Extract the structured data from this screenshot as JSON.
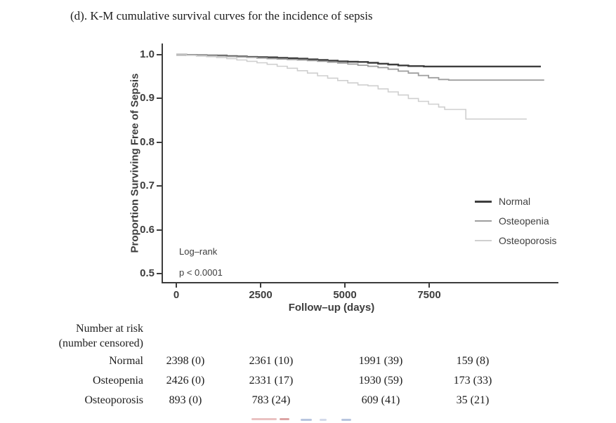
{
  "figure": {
    "title": "(d). K-M cumulative survival curves for the incidence of sepsis"
  },
  "chart_data": {
    "type": "line",
    "subtype": "kaplan-meier-step",
    "title": "(d). K-M cumulative survival curves for the incidence of sepsis",
    "xlabel": "Follow–up (days)",
    "ylabel": "Proportion Surviving Free of Sepsis",
    "xlim": [
      0,
      11350
    ],
    "ylim": [
      0.5,
      1.0
    ],
    "grid": false,
    "legend_position": "right-middle",
    "x_ticks": [
      0,
      2500,
      5000,
      7500
    ],
    "x_tick_labels": [
      "0",
      "2500",
      "5000",
      "7500"
    ],
    "y_ticks": [
      1.0,
      0.9,
      0.8,
      0.7,
      0.6,
      0.5
    ],
    "y_tick_labels": [
      "1.0",
      "0.9",
      "0.8",
      "0.7",
      "0.6",
      "0.5"
    ],
    "annotation": {
      "line1": "Log–rank",
      "line2": "p < 0.0001"
    },
    "series": [
      {
        "name": "Normal",
        "color": "#3d3d3d",
        "points": [
          [
            0,
            1.0
          ],
          [
            300,
            0.9995
          ],
          [
            600,
            0.999
          ],
          [
            900,
            0.9985
          ],
          [
            1200,
            0.998
          ],
          [
            1500,
            0.997
          ],
          [
            1800,
            0.996
          ],
          [
            2100,
            0.995
          ],
          [
            2400,
            0.9945
          ],
          [
            2700,
            0.994
          ],
          [
            3000,
            0.993
          ],
          [
            3300,
            0.992
          ],
          [
            3600,
            0.991
          ],
          [
            3900,
            0.9895
          ],
          [
            4200,
            0.988
          ],
          [
            4500,
            0.9865
          ],
          [
            4800,
            0.985
          ],
          [
            5100,
            0.984
          ],
          [
            5400,
            0.9835
          ],
          [
            5700,
            0.9815
          ],
          [
            6000,
            0.9795
          ],
          [
            6300,
            0.9775
          ],
          [
            6600,
            0.9755
          ],
          [
            6900,
            0.974
          ],
          [
            7360,
            0.973
          ],
          [
            10840,
            0.973
          ]
        ]
      },
      {
        "name": "Osteopenia",
        "color": "#9e9e9e",
        "points": [
          [
            0,
            1.0
          ],
          [
            300,
            0.9995
          ],
          [
            600,
            0.999
          ],
          [
            900,
            0.998
          ],
          [
            1200,
            0.997
          ],
          [
            1500,
            0.996
          ],
          [
            1800,
            0.995
          ],
          [
            2100,
            0.994
          ],
          [
            2400,
            0.9925
          ],
          [
            2700,
            0.991
          ],
          [
            3000,
            0.99
          ],
          [
            3300,
            0.989
          ],
          [
            3600,
            0.988
          ],
          [
            3900,
            0.9865
          ],
          [
            4200,
            0.985
          ],
          [
            4500,
            0.983
          ],
          [
            4800,
            0.981
          ],
          [
            5100,
            0.9785
          ],
          [
            5400,
            0.976
          ],
          [
            5700,
            0.9735
          ],
          [
            6000,
            0.9705
          ],
          [
            6300,
            0.967
          ],
          [
            6600,
            0.9625
          ],
          [
            6900,
            0.958
          ],
          [
            7200,
            0.9525
          ],
          [
            7500,
            0.9475
          ],
          [
            7800,
            0.9435
          ],
          [
            8100,
            0.942
          ],
          [
            10940,
            0.942
          ]
        ]
      },
      {
        "name": "Osteoporosis",
        "color": "#cfcfcf",
        "points": [
          [
            0,
            1.0
          ],
          [
            300,
            0.9985
          ],
          [
            600,
            0.997
          ],
          [
            900,
            0.9955
          ],
          [
            1200,
            0.9935
          ],
          [
            1500,
            0.991
          ],
          [
            1800,
            0.988
          ],
          [
            2100,
            0.985
          ],
          [
            2400,
            0.9815
          ],
          [
            2700,
            0.978
          ],
          [
            3000,
            0.9735
          ],
          [
            3300,
            0.969
          ],
          [
            3600,
            0.9635
          ],
          [
            3900,
            0.958
          ],
          [
            4200,
            0.952
          ],
          [
            4500,
            0.9465
          ],
          [
            4800,
            0.941
          ],
          [
            5100,
            0.9355
          ],
          [
            5400,
            0.931
          ],
          [
            5700,
            0.929
          ],
          [
            6000,
            0.922
          ],
          [
            6300,
            0.915
          ],
          [
            6600,
            0.908
          ],
          [
            6900,
            0.9
          ],
          [
            7200,
            0.8935
          ],
          [
            7500,
            0.887
          ],
          [
            7800,
            0.8805
          ],
          [
            7980,
            0.875
          ],
          [
            8610,
            0.853
          ],
          [
            10420,
            0.853
          ]
        ]
      }
    ],
    "risk_table": {
      "header_line1": "Number at risk",
      "header_line2": "(number censored)",
      "columns_days": [
        0,
        2500,
        5000,
        7500
      ],
      "rows": [
        {
          "label": "Normal",
          "values": [
            "2398 (0)",
            "2361 (10)",
            "1991 (39)",
            "159 (8)"
          ]
        },
        {
          "label": "Osteopenia",
          "values": [
            "2426 (0)",
            "2331 (17)",
            "1930 (59)",
            "173 (33)"
          ]
        },
        {
          "label": "Osteoporosis",
          "values": [
            "893 (0)",
            "783 (24)",
            "609 (41)",
            "35 (21)"
          ]
        }
      ]
    }
  },
  "legend": {
    "items": [
      {
        "label": "Normal",
        "color": "#3d3d3d"
      },
      {
        "label": "Osteopenia",
        "color": "#9e9e9e"
      },
      {
        "label": "Osteoporosis",
        "color": "#cfcfcf"
      }
    ]
  }
}
